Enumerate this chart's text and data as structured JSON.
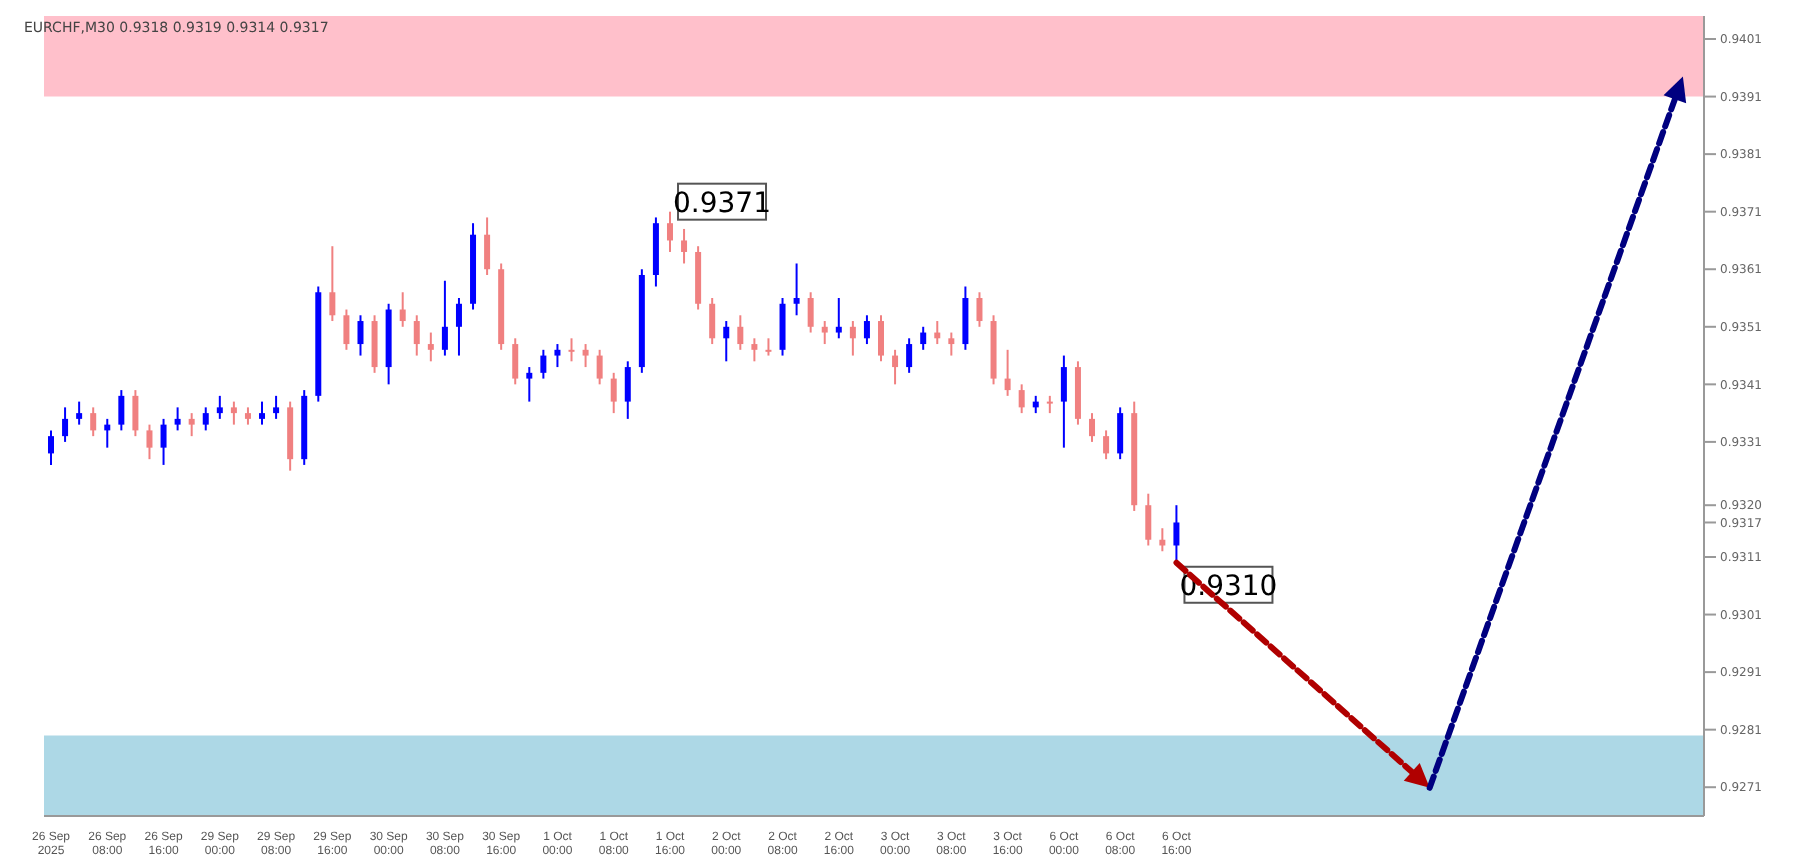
{
  "chart_data": {
    "type": "candlestick",
    "title": "EURCHF,M30  0.9318 0.9319 0.9314 0.9317",
    "categories": [
      "26 Sep 2025",
      null,
      null,
      null,
      "26 Sep 08:00",
      null,
      null,
      null,
      "26 Sep 16:00",
      null,
      null,
      null,
      "29 Sep 00:00",
      null,
      null,
      null,
      "29 Sep 08:00",
      null,
      null,
      null,
      "29 Sep 16:00",
      null,
      null,
      null,
      "30 Sep 00:00",
      null,
      null,
      null,
      "30 Sep 08:00",
      null,
      null,
      null,
      "30 Sep 16:00",
      null,
      null,
      null,
      "1 Oct 00:00",
      null,
      null,
      null,
      "1 Oct 08:00",
      null,
      null,
      null,
      "1 Oct 16:00",
      null,
      null,
      null,
      "2 Oct 00:00",
      null,
      null,
      null,
      "2 Oct 08:00",
      null,
      null,
      null,
      "2 Oct 16:00",
      null,
      null,
      null,
      "3 Oct 00:00",
      null,
      null,
      null,
      "3 Oct 08:00",
      null,
      null,
      null,
      "3 Oct 16:00",
      null,
      null,
      null,
      "6 Oct 00:00",
      null,
      null,
      null,
      "6 Oct 08:00",
      null,
      null,
      null,
      "6 Oct 16:00",
      null,
      null,
      null,
      null,
      null,
      null,
      null,
      null,
      null,
      null,
      null,
      null,
      null,
      null,
      null,
      null,
      null,
      null,
      null,
      null,
      null,
      null,
      null,
      null,
      null,
      null,
      null,
      null,
      null,
      null,
      null,
      null,
      null,
      null,
      null,
      null,
      null
    ],
    "ohlc": [
      [
        0.9329,
        0.9333,
        0.9327,
        0.9332
      ],
      [
        0.9332,
        0.9337,
        0.9331,
        0.9335
      ],
      [
        0.9335,
        0.9338,
        0.9334,
        0.9336
      ],
      [
        0.9336,
        0.9337,
        0.9332,
        0.9333
      ],
      [
        0.9333,
        0.9335,
        0.933,
        0.9334
      ],
      [
        0.9334,
        0.934,
        0.9333,
        0.9339
      ],
      [
        0.9339,
        0.934,
        0.9332,
        0.9333
      ],
      [
        0.9333,
        0.9334,
        0.9328,
        0.933
      ],
      [
        0.933,
        0.9335,
        0.9327,
        0.9334
      ],
      [
        0.9334,
        0.9337,
        0.9333,
        0.9335
      ],
      [
        0.9335,
        0.9336,
        0.9332,
        0.9334
      ],
      [
        0.9334,
        0.9337,
        0.9333,
        0.9336
      ],
      [
        0.9336,
        0.9339,
        0.9335,
        0.9337
      ],
      [
        0.9337,
        0.9338,
        0.9334,
        0.9336
      ],
      [
        0.9336,
        0.9337,
        0.9334,
        0.9335
      ],
      [
        0.9335,
        0.9338,
        0.9334,
        0.9336
      ],
      [
        0.9336,
        0.9339,
        0.9335,
        0.9337
      ],
      [
        0.9337,
        0.9338,
        0.9326,
        0.9328
      ],
      [
        0.9328,
        0.934,
        0.9327,
        0.9339
      ],
      [
        0.9339,
        0.9358,
        0.9338,
        0.9357
      ],
      [
        0.9357,
        0.9365,
        0.9352,
        0.9353
      ],
      [
        0.9353,
        0.9354,
        0.9347,
        0.9348
      ],
      [
        0.9348,
        0.9353,
        0.9346,
        0.9352
      ],
      [
        0.9352,
        0.9353,
        0.9343,
        0.9344
      ],
      [
        0.9344,
        0.9355,
        0.9341,
        0.9354
      ],
      [
        0.9354,
        0.9357,
        0.9351,
        0.9352
      ],
      [
        0.9352,
        0.9353,
        0.9346,
        0.9348
      ],
      [
        0.9348,
        0.935,
        0.9345,
        0.9347
      ],
      [
        0.9347,
        0.9359,
        0.9346,
        0.9351
      ],
      [
        0.9351,
        0.9356,
        0.9346,
        0.9355
      ],
      [
        0.9355,
        0.9369,
        0.9354,
        0.9367
      ],
      [
        0.9367,
        0.937,
        0.936,
        0.9361
      ],
      [
        0.9361,
        0.9362,
        0.9347,
        0.9348
      ],
      [
        0.9348,
        0.9349,
        0.9341,
        0.9342
      ],
      [
        0.9342,
        0.9344,
        0.9338,
        0.9343
      ],
      [
        0.9343,
        0.9347,
        0.9342,
        0.9346
      ],
      [
        0.9346,
        0.9348,
        0.9344,
        0.9347
      ],
      [
        0.9347,
        0.9349,
        0.9345,
        0.9347
      ],
      [
        0.9347,
        0.9348,
        0.9344,
        0.9346
      ],
      [
        0.9346,
        0.9347,
        0.9341,
        0.9342
      ],
      [
        0.9342,
        0.9343,
        0.9336,
        0.9338
      ],
      [
        0.9338,
        0.9345,
        0.9335,
        0.9344
      ],
      [
        0.9344,
        0.9361,
        0.9343,
        0.936
      ],
      [
        0.936,
        0.937,
        0.9358,
        0.9369
      ],
      [
        0.9369,
        0.9371,
        0.9364,
        0.9366
      ],
      [
        0.9366,
        0.9368,
        0.9362,
        0.9364
      ],
      [
        0.9364,
        0.9365,
        0.9354,
        0.9355
      ],
      [
        0.9355,
        0.9356,
        0.9348,
        0.9349
      ],
      [
        0.9349,
        0.9352,
        0.9345,
        0.9351
      ],
      [
        0.9351,
        0.9353,
        0.9347,
        0.9348
      ],
      [
        0.9348,
        0.9349,
        0.9345,
        0.9347
      ],
      [
        0.9347,
        0.9349,
        0.9346,
        0.9347
      ],
      [
        0.9347,
        0.9356,
        0.9346,
        0.9355
      ],
      [
        0.9355,
        0.9362,
        0.9353,
        0.9356
      ],
      [
        0.9356,
        0.9357,
        0.935,
        0.9351
      ],
      [
        0.9351,
        0.9352,
        0.9348,
        0.935
      ],
      [
        0.935,
        0.9356,
        0.9349,
        0.9351
      ],
      [
        0.9351,
        0.9352,
        0.9346,
        0.9349
      ],
      [
        0.9349,
        0.9353,
        0.9348,
        0.9352
      ],
      [
        0.9352,
        0.9353,
        0.9345,
        0.9346
      ],
      [
        0.9346,
        0.9347,
        0.9341,
        0.9344
      ],
      [
        0.9344,
        0.9349,
        0.9343,
        0.9348
      ],
      [
        0.9348,
        0.9351,
        0.9347,
        0.935
      ],
      [
        0.935,
        0.9352,
        0.9348,
        0.9349
      ],
      [
        0.9349,
        0.935,
        0.9346,
        0.9348
      ],
      [
        0.9348,
        0.9358,
        0.9347,
        0.9356
      ],
      [
        0.9356,
        0.9357,
        0.9351,
        0.9352
      ],
      [
        0.9352,
        0.9353,
        0.9341,
        0.9342
      ],
      [
        0.9342,
        0.9347,
        0.9339,
        0.934
      ],
      [
        0.934,
        0.9341,
        0.9336,
        0.9337
      ],
      [
        0.9337,
        0.9339,
        0.9336,
        0.9338
      ],
      [
        0.9338,
        0.9339,
        0.9336,
        0.9338
      ],
      [
        0.9338,
        0.9346,
        0.933,
        0.9344
      ],
      [
        0.9344,
        0.9345,
        0.9334,
        0.9335
      ],
      [
        0.9335,
        0.9336,
        0.9331,
        0.9332
      ],
      [
        0.9332,
        0.9333,
        0.9328,
        0.9329
      ],
      [
        0.9329,
        0.9337,
        0.9328,
        0.9336
      ],
      [
        0.9336,
        0.9338,
        0.9319,
        0.932
      ],
      [
        0.932,
        0.9322,
        0.9313,
        0.9314
      ],
      [
        0.9314,
        0.9316,
        0.9312,
        0.9313
      ],
      [
        0.9313,
        0.932,
        0.931,
        0.9317
      ],
      null,
      null,
      null,
      null,
      null,
      null,
      null,
      null,
      null,
      null,
      null,
      null,
      null,
      null,
      null,
      null,
      null,
      null,
      null,
      null,
      null,
      null,
      null,
      null,
      null,
      null,
      null,
      null,
      null,
      null,
      null,
      null,
      null,
      null,
      null,
      null,
      null
    ],
    "colors": [
      "#0000ff",
      "#0000ff",
      "#0000ff",
      "#f08080",
      "#0000ff",
      "#0000ff",
      "#f08080",
      "#f08080",
      "#0000ff",
      "#0000ff",
      "#f08080",
      "#0000ff",
      "#0000ff",
      "#f08080",
      "#f08080",
      "#0000ff",
      "#0000ff",
      "#f08080",
      "#0000ff",
      "#0000ff",
      "#f08080",
      "#f08080",
      "#0000ff",
      "#f08080",
      "#0000ff",
      "#f08080",
      "#f08080",
      "#f08080",
      "#0000ff",
      "#0000ff",
      "#0000ff",
      "#f08080",
      "#f08080",
      "#f08080",
      "#0000ff",
      "#0000ff",
      "#0000ff",
      "#f08080",
      "#f08080",
      "#f08080",
      "#f08080",
      "#0000ff",
      "#0000ff",
      "#0000ff",
      "#f08080",
      "#f08080",
      "#f08080",
      "#f08080",
      "#0000ff",
      "#f08080",
      "#f08080",
      "#f08080",
      "#0000ff",
      "#0000ff",
      "#f08080",
      "#f08080",
      "#0000ff",
      "#f08080",
      "#0000ff",
      "#f08080",
      "#f08080",
      "#0000ff",
      "#0000ff",
      "#f08080",
      "#f08080",
      "#0000ff",
      "#f08080",
      "#f08080",
      "#f08080",
      "#f08080",
      "#0000ff",
      "#f08080",
      "#0000ff",
      "#f08080",
      "#f08080",
      "#f08080",
      "#0000ff",
      "#f08080",
      "#f08080",
      "#f08080",
      "#0000ff",
      null,
      null,
      null,
      null,
      null,
      null,
      null,
      null,
      null,
      null,
      null,
      null,
      null,
      null,
      null,
      null,
      null,
      null,
      null,
      null,
      null,
      null,
      null,
      null,
      null,
      null,
      null,
      null,
      null,
      null,
      null,
      null,
      null,
      null,
      null,
      null,
      null
    ],
    "ylim": [
      0.9266,
      0.9405
    ],
    "yticks": [
      0.9271,
      0.9281,
      0.9291,
      0.9301,
      0.9311,
      {
        "value": 0.9317,
        "label": "0.9317"
      },
      {
        "value": 0.932,
        "label": "0.9320"
      },
      0.9331,
      0.9341,
      0.9351,
      0.9361,
      0.9371,
      0.9381,
      0.9391,
      0.9401
    ],
    "bands": [
      {
        "axis": "y",
        "from": 0.9391,
        "to": 0.9405,
        "color": "#ffc0cb"
      },
      {
        "axis": "y",
        "from": 0.9266,
        "to": 0.928,
        "color": "#add8e6"
      }
    ],
    "annotations": [
      {
        "text": "0.9371",
        "x": "1 Oct 16:00",
        "y": 0.9371
      },
      {
        "text": "0.9310",
        "x": "6 Oct 16:00",
        "y": 0.931
      }
    ],
    "grid": false,
    "legend": false
  }
}
